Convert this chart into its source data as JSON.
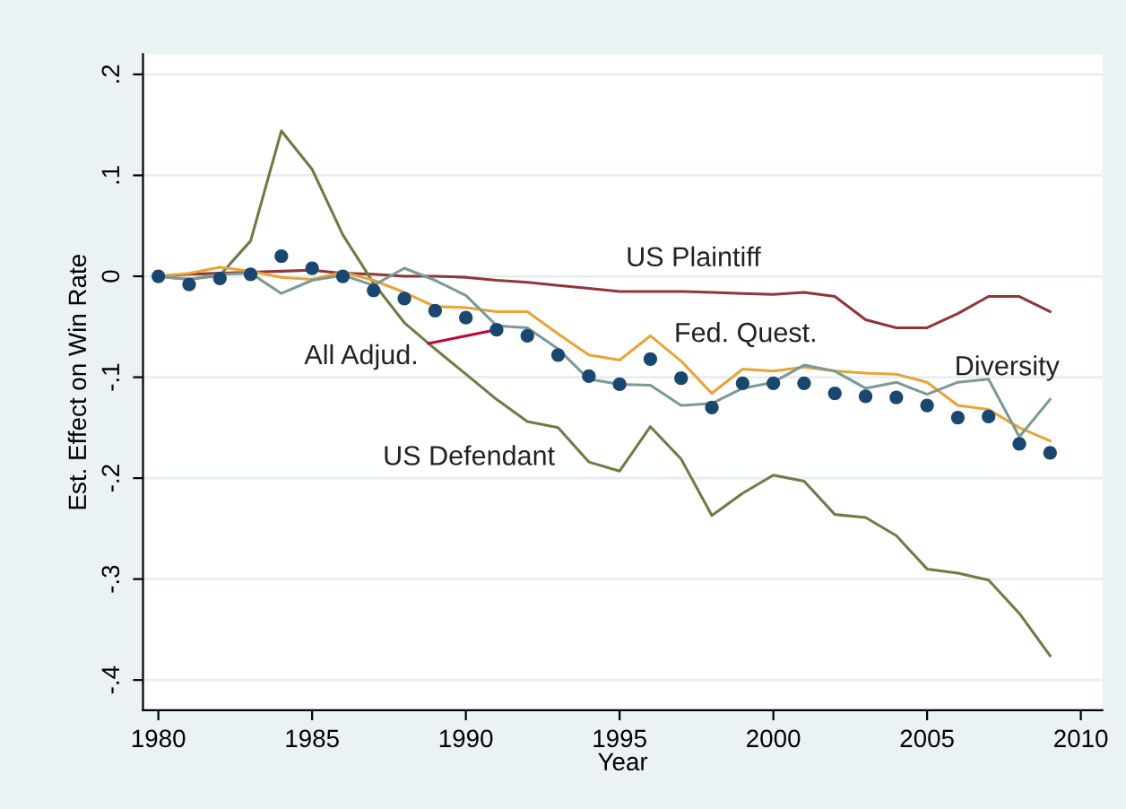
{
  "chart_data": {
    "type": "line",
    "xlabel": "Year",
    "ylabel": "Est. Effect on Win Rate",
    "x": [
      1980,
      1981,
      1982,
      1983,
      1984,
      1985,
      1986,
      1987,
      1988,
      1989,
      1990,
      1991,
      1992,
      1993,
      1994,
      1995,
      1996,
      1997,
      1998,
      1999,
      2000,
      2001,
      2002,
      2003,
      2004,
      2005,
      2006,
      2007,
      2008,
      2009
    ],
    "series": [
      {
        "name": "US Plaintiff",
        "color": "#90353b",
        "values": [
          0,
          0.002,
          0.003,
          0.004,
          0.005,
          0.006,
          0.003,
          0.002,
          0,
          0,
          -0.001,
          -0.004,
          -0.006,
          -0.009,
          -0.012,
          -0.015,
          -0.015,
          -0.015,
          -0.016,
          -0.017,
          -0.018,
          -0.016,
          -0.02,
          -0.043,
          -0.051,
          -0.051,
          -0.037,
          -0.02,
          -0.02,
          -0.035
        ]
      },
      {
        "name": "US Defendant",
        "color": "#6b7d45",
        "values": [
          0,
          -0.003,
          0.001,
          0.035,
          0.144,
          0.106,
          0.041,
          -0.007,
          -0.046,
          -0.072,
          -0.097,
          -0.122,
          -0.144,
          -0.15,
          -0.184,
          -0.193,
          -0.149,
          -0.181,
          -0.237,
          -0.215,
          -0.197,
          -0.203,
          -0.236,
          -0.239,
          -0.257,
          -0.29,
          -0.294,
          -0.301,
          -0.334,
          -0.376
        ]
      },
      {
        "name": "Fed. Quest.",
        "color": "#e8a33a",
        "values": [
          0,
          0.003,
          0.009,
          0.005,
          -0.001,
          -0.003,
          0.004,
          -0.004,
          -0.016,
          -0.03,
          -0.031,
          -0.035,
          -0.035,
          -0.057,
          -0.078,
          -0.083,
          -0.059,
          -0.084,
          -0.116,
          -0.092,
          -0.094,
          -0.09,
          -0.094,
          -0.096,
          -0.097,
          -0.105,
          -0.128,
          -0.132,
          -0.15,
          -0.163
        ]
      },
      {
        "name": "Diversity",
        "color": "#7a9a95",
        "values": [
          0,
          -0.003,
          0.002,
          0.003,
          -0.017,
          -0.004,
          0.001,
          -0.009,
          0.008,
          -0.004,
          -0.019,
          -0.049,
          -0.051,
          -0.072,
          -0.102,
          -0.107,
          -0.108,
          -0.128,
          -0.126,
          -0.111,
          -0.105,
          -0.088,
          -0.094,
          -0.111,
          -0.105,
          -0.117,
          -0.105,
          -0.102,
          -0.159,
          -0.122
        ]
      },
      {
        "name": "All Adjud.",
        "type": "scatter",
        "marker": "circle",
        "color": "#1a476f",
        "values": [
          0,
          -0.008,
          -0.002,
          0.002,
          0.02,
          0.008,
          0,
          -0.014,
          -0.022,
          -0.034,
          -0.041,
          -0.053,
          -0.059,
          -0.078,
          -0.099,
          -0.107,
          -0.082,
          -0.101,
          -0.13,
          -0.106,
          -0.106,
          -0.106,
          -0.116,
          -0.119,
          -0.12,
          -0.128,
          -0.14,
          -0.139,
          -0.166,
          -0.175
        ]
      }
    ],
    "xlim": [
      1979.5,
      2010.7
    ],
    "xticks": [
      1980,
      1985,
      1990,
      1995,
      2000,
      2005,
      2010
    ],
    "ylim": [
      -0.43,
      0.22
    ],
    "yticks": [
      {
        "value": 0.2,
        "label": ".2"
      },
      {
        "value": 0.1,
        "label": ".1"
      },
      {
        "value": 0,
        "label": "0"
      },
      {
        "value": -0.1,
        "label": "-.1"
      },
      {
        "value": -0.2,
        "label": "-.2"
      },
      {
        "value": -0.3,
        "label": "-.3"
      },
      {
        "value": -0.4,
        "label": "-.4"
      }
    ],
    "grid": "y",
    "legend": false
  }
}
